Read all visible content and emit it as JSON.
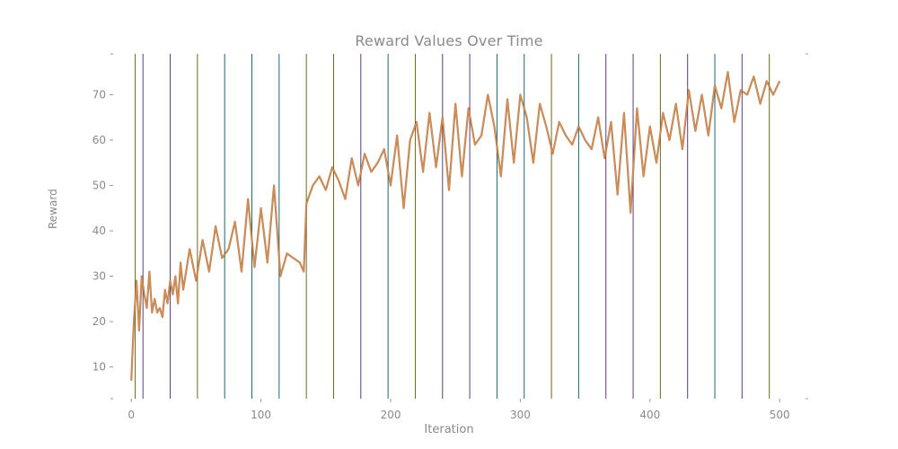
{
  "chart_data": {
    "type": "line",
    "title": "Reward Values Over Time",
    "xlabel": "Iteration",
    "ylabel": "Reward",
    "xlim": [
      -14,
      522
    ],
    "ylim": [
      3,
      79
    ],
    "xticks": [
      0,
      100,
      200,
      300,
      400,
      500
    ],
    "yticks": [
      10,
      20,
      30,
      40,
      50,
      60,
      70
    ],
    "grid": false,
    "line_color": "#e08a43",
    "series": [
      {
        "x": [
          0,
          2,
          4,
          6,
          8,
          10,
          12,
          14,
          16,
          18,
          20,
          22,
          24,
          26,
          28,
          30,
          32,
          34,
          36,
          38,
          40,
          45,
          50,
          55,
          60,
          65,
          70,
          75,
          80,
          85,
          90,
          95,
          100,
          105,
          110,
          115,
          120,
          125,
          130,
          133,
          135,
          140,
          145,
          150,
          155,
          160,
          165,
          170,
          175,
          180,
          185,
          190,
          195,
          200,
          205,
          210,
          215,
          220,
          225,
          230,
          235,
          240,
          245,
          250,
          255,
          260,
          265,
          270,
          275,
          280,
          285,
          290,
          295,
          300,
          305,
          310,
          315,
          320,
          325,
          330,
          335,
          340,
          345,
          350,
          355,
          360,
          365,
          370,
          375,
          380,
          385,
          390,
          395,
          400,
          405,
          410,
          415,
          420,
          425,
          430,
          435,
          440,
          445,
          450,
          455,
          460,
          465,
          470,
          475,
          480,
          485,
          490,
          495,
          500
        ],
        "y": [
          7,
          20,
          29,
          18,
          30,
          26,
          23,
          31,
          22,
          25,
          22,
          23,
          21,
          27,
          24,
          29,
          26,
          30,
          24,
          33,
          27,
          36,
          29,
          38,
          31,
          41,
          34,
          36,
          42,
          31,
          47,
          32,
          45,
          33,
          50,
          30,
          35,
          34,
          33,
          31,
          46,
          50,
          52,
          49,
          54,
          51,
          47,
          56,
          50,
          57,
          53,
          55,
          58,
          50,
          61,
          45,
          60,
          64,
          53,
          66,
          54,
          65,
          49,
          68,
          52,
          67,
          59,
          61,
          70,
          63,
          52,
          69,
          55,
          70,
          65,
          55,
          68,
          63,
          57,
          64,
          61,
          59,
          63,
          60,
          58,
          65,
          56,
          64,
          48,
          66,
          44,
          67,
          52,
          63,
          55,
          66,
          60,
          68,
          58,
          71,
          62,
          70,
          61,
          72,
          67,
          75,
          64,
          71,
          70,
          74,
          68,
          73,
          70,
          73
        ]
      }
    ],
    "vertical_lines": [
      {
        "x": 3,
        "color": "#6b6b1e"
      },
      {
        "x": 9,
        "color": "#5b3d7a"
      },
      {
        "x": 30,
        "color": "#5b3d7a"
      },
      {
        "x": 51,
        "color": "#6b6b1e"
      },
      {
        "x": 72,
        "color": "#1f6670"
      },
      {
        "x": 93,
        "color": "#1f6670"
      },
      {
        "x": 114,
        "color": "#1f6670"
      },
      {
        "x": 135,
        "color": "#6b6b1e"
      },
      {
        "x": 156,
        "color": "#6b6b1e"
      },
      {
        "x": 177,
        "color": "#5b3d7a"
      },
      {
        "x": 198,
        "color": "#1f6670"
      },
      {
        "x": 219,
        "color": "#6b6b1e"
      },
      {
        "x": 240,
        "color": "#5b3d7a"
      },
      {
        "x": 261,
        "color": "#5b3d7a"
      },
      {
        "x": 282,
        "color": "#1f6670"
      },
      {
        "x": 303,
        "color": "#1f6670"
      },
      {
        "x": 324,
        "color": "#6b6b1e"
      },
      {
        "x": 345,
        "color": "#1f6670"
      },
      {
        "x": 366,
        "color": "#5b3d7a"
      },
      {
        "x": 387,
        "color": "#5b3d7a"
      },
      {
        "x": 408,
        "color": "#6b6b1e"
      },
      {
        "x": 429,
        "color": "#5b3d7a"
      },
      {
        "x": 450,
        "color": "#1f6670"
      },
      {
        "x": 471,
        "color": "#5b3d7a"
      },
      {
        "x": 492,
        "color": "#6b6b1e"
      }
    ]
  }
}
